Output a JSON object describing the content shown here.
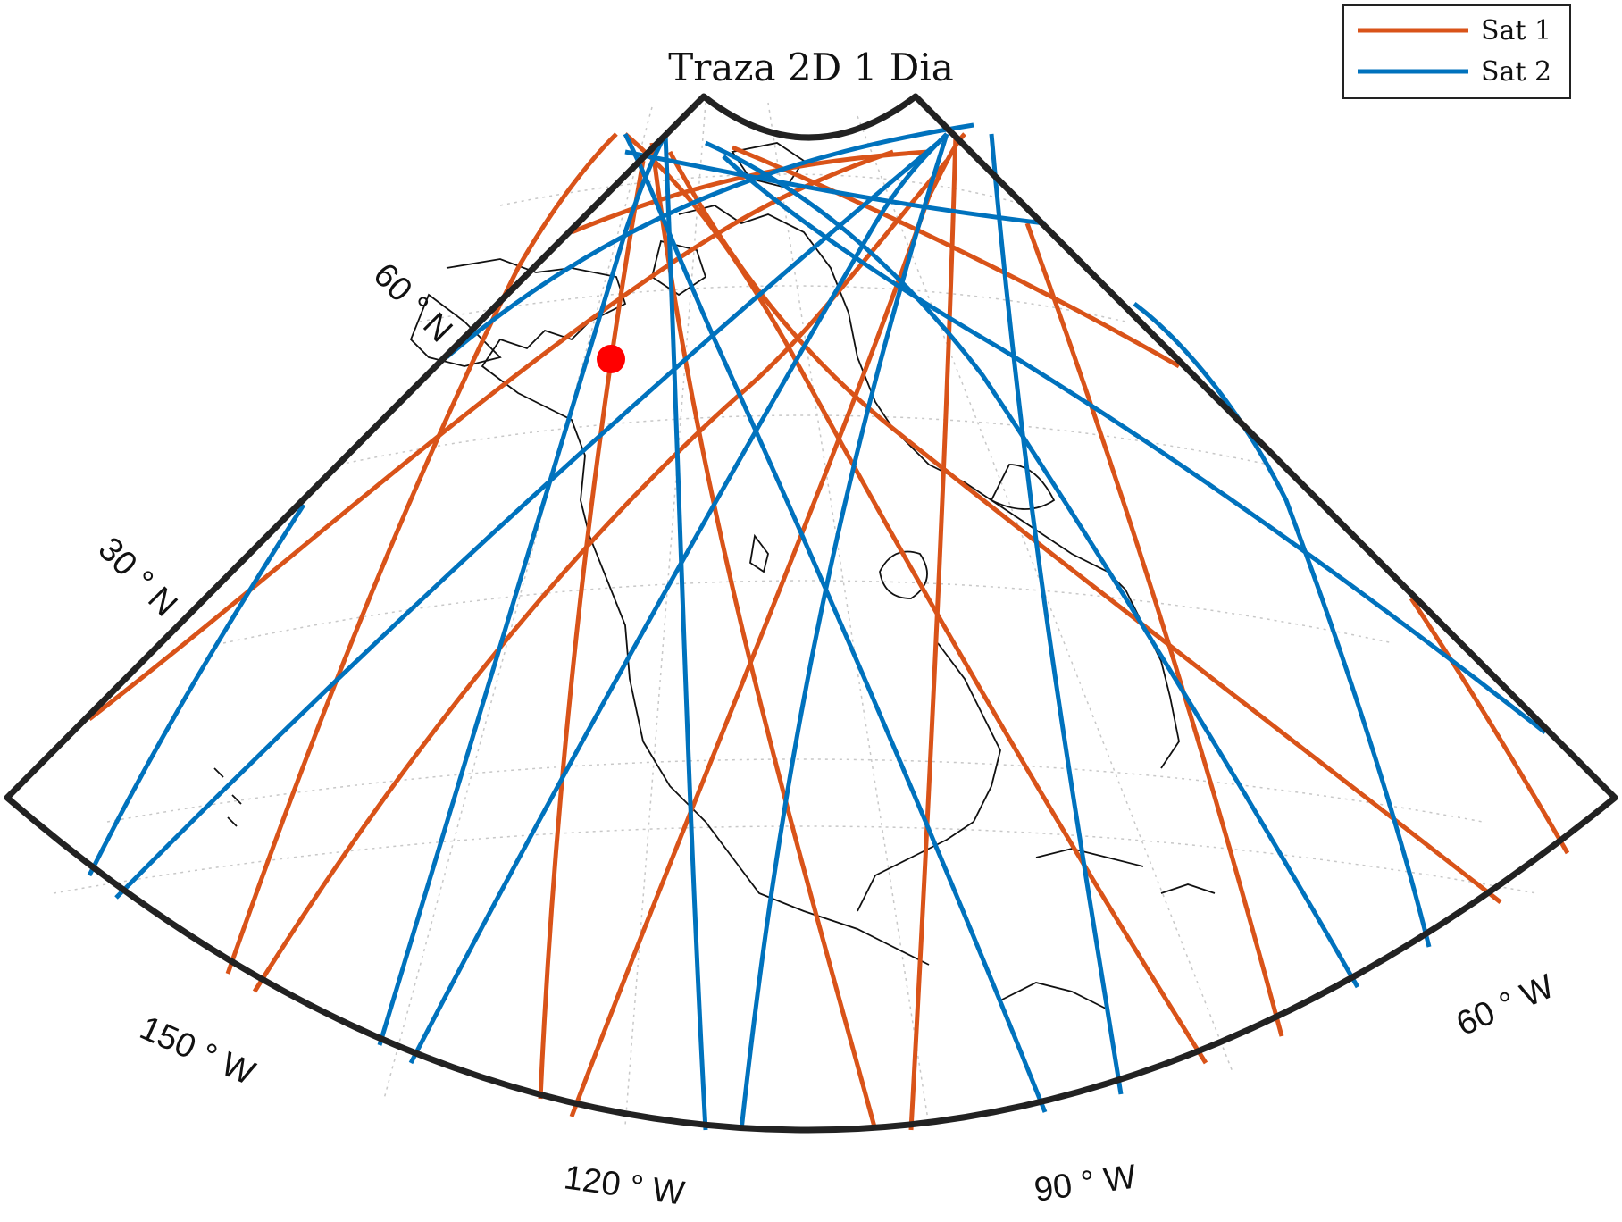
{
  "map": {
    "title": "Traza 2D 1 Dia",
    "projection": "conic",
    "region": "North America",
    "marker": {
      "lat": 52,
      "lon": -118,
      "color": "#ff0000"
    },
    "legend": {
      "placement": "top-right",
      "entries": [
        {
          "label": "Sat 1",
          "color": "#d95319"
        },
        {
          "label": "Sat 2",
          "color": "#0072bd"
        }
      ]
    },
    "lat_labels": [
      "60 ° N",
      "30 ° N"
    ],
    "lon_labels": [
      "150 ° W",
      "120 ° W",
      "90 ° W",
      "60 ° W"
    ]
  },
  "chart_data": {
    "type": "map",
    "title": "Traza 2D 1 Dia",
    "series": [
      {
        "name": "Sat 1",
        "color": "#d95319"
      },
      {
        "name": "Sat 2",
        "color": "#0072bd"
      }
    ],
    "grid": true,
    "legend_placement": "top-right"
  }
}
